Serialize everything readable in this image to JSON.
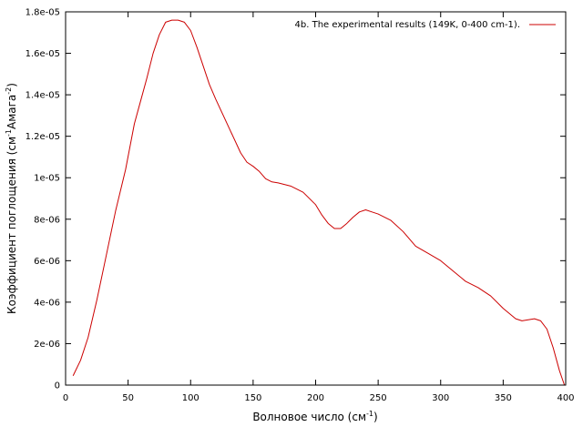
{
  "chart_data": {
    "type": "line",
    "title": "",
    "xlabel": "Волновое число (см",
    "xlabel_sup": "-1",
    "xlabel_end": ")",
    "ylabel_a": "Коэффициент поглощения (см",
    "ylabel_sup1": "-1",
    "ylabel_b": "Амага",
    "ylabel_sup2": "-2",
    "ylabel_end": ")",
    "xlim": [
      0,
      400
    ],
    "ylim": [
      0,
      1.8e-05
    ],
    "xticks": [
      0,
      50,
      100,
      150,
      200,
      250,
      300,
      350,
      400
    ],
    "xtick_labels": [
      "0",
      "50",
      "100",
      "150",
      "200",
      "250",
      "300",
      "350",
      "400"
    ],
    "yticks": [
      0,
      2e-06,
      4e-06,
      6e-06,
      8e-06,
      1e-05,
      1.2e-05,
      1.4e-05,
      1.6e-05,
      1.8e-05
    ],
    "ytick_labels": [
      "0",
      "2e-06",
      "4e-06",
      "6e-06",
      "8e-06",
      "1e-05",
      "1.2e-05",
      "1.4e-05",
      "1.6e-05",
      "1.8e-05"
    ],
    "grid": false,
    "legend_position": "top-right",
    "series": [
      {
        "name": "4b. The experimental  results (149K, 0-400 cm-1).",
        "color": "#cc0000",
        "x": [
          6,
          12,
          18,
          25,
          32,
          40,
          48,
          55,
          60,
          65,
          70,
          75,
          80,
          85,
          90,
          95,
          100,
          105,
          110,
          115,
          120,
          130,
          140,
          145,
          150,
          155,
          160,
          165,
          170,
          180,
          190,
          200,
          205,
          210,
          215,
          220,
          225,
          230,
          235,
          240,
          245,
          250,
          260,
          270,
          280,
          290,
          300,
          310,
          320,
          330,
          340,
          350,
          360,
          365,
          370,
          375,
          380,
          385,
          390,
          395,
          399
        ],
        "y": [
          4.5e-07,
          1.2e-06,
          2.3e-06,
          4.1e-06,
          6.1e-06,
          8.4e-06,
          1.04e-05,
          1.26e-05,
          1.37e-05,
          1.48e-05,
          1.6e-05,
          1.69e-05,
          1.75e-05,
          1.76e-05,
          1.76e-05,
          1.75e-05,
          1.71e-05,
          1.63e-05,
          1.54e-05,
          1.45e-05,
          1.38e-05,
          1.25e-05,
          1.12e-05,
          1.075e-05,
          1.055e-05,
          1.03e-05,
          9.95e-06,
          9.8e-06,
          9.75e-06,
          9.6e-06,
          9.3e-06,
          8.7e-06,
          8.2e-06,
          7.8e-06,
          7.55e-06,
          7.55e-06,
          7.8e-06,
          8.1e-06,
          8.35e-06,
          8.45e-06,
          8.35e-06,
          8.25e-06,
          7.95e-06,
          7.4e-06,
          6.7e-06,
          6.35e-06,
          6e-06,
          5.5e-06,
          5e-06,
          4.7e-06,
          4.3e-06,
          3.7e-06,
          3.2e-06,
          3.1e-06,
          3.15e-06,
          3.2e-06,
          3.1e-06,
          2.7e-06,
          1.8e-06,
          7e-07,
          0
        ]
      }
    ]
  }
}
